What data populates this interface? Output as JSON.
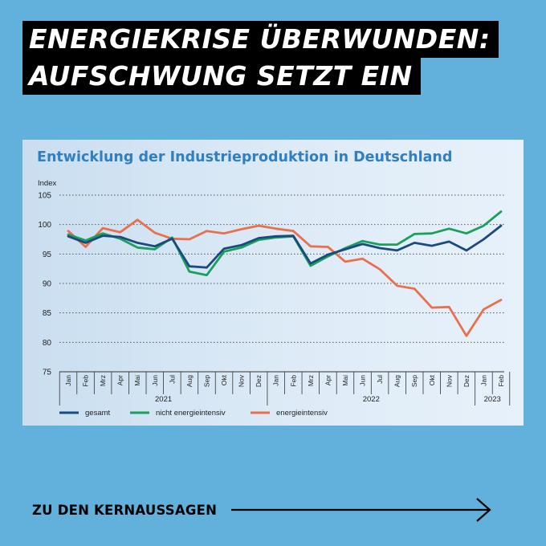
{
  "headline": {
    "line1": "ENERGIEKRISE ÜBERWUNDEN:",
    "line2": "AUFSCHWUNG SETZT EIN"
  },
  "cta": {
    "label": "ZU DEN KERNAUSSAGEN"
  },
  "icons": {
    "cta_arrow": "long-arrow-right-icon"
  },
  "colors": {
    "background": "#62b0dc",
    "title": "#2f7fc1",
    "gesamt": "#1a4a80",
    "nicht_energieintensiv": "#1aa05a",
    "energieintensiv": "#e8704e"
  },
  "chart_data": {
    "type": "line",
    "title": "Entwicklung der Industrieproduktion in Deutschland",
    "ylabel": "Index",
    "ylim": [
      75,
      105
    ],
    "yticks": [
      75,
      80,
      85,
      90,
      95,
      100,
      105
    ],
    "grid": true,
    "legend_position": "bottom",
    "categories": [
      "Jan",
      "Feb",
      "Mrz",
      "Apr",
      "Mai",
      "Jun",
      "Jul",
      "Aug",
      "Sep",
      "Okt",
      "Nov",
      "Dez",
      "Jan",
      "Feb",
      "Mrz",
      "Apr",
      "Mai",
      "Jun",
      "Jul",
      "Aug",
      "Sep",
      "Okt",
      "Nov",
      "Dez",
      "Jan",
      "Feb"
    ],
    "year_groups": [
      {
        "label": "2021",
        "from": 0,
        "to": 11
      },
      {
        "label": "2022",
        "from": 12,
        "to": 23
      },
      {
        "label": "2023",
        "from": 24,
        "to": 25
      }
    ],
    "series": [
      {
        "name": "gesamt",
        "color": "#1a4a80",
        "values": [
          98.0,
          96.9,
          98.1,
          97.9,
          96.9,
          96.3,
          97.6,
          92.9,
          92.7,
          95.9,
          96.5,
          97.7,
          98.0,
          98.1,
          93.4,
          94.9,
          95.8,
          96.7,
          96.0,
          95.6,
          96.9,
          96.4,
          97.1,
          95.6,
          97.5,
          99.8
        ]
      },
      {
        "name": "nicht energieintensiv",
        "color": "#1aa05a",
        "values": [
          98.3,
          97.3,
          98.5,
          97.6,
          96.1,
          95.8,
          97.8,
          92.0,
          91.4,
          95.4,
          96.1,
          97.4,
          97.8,
          98.0,
          93.0,
          94.6,
          96.0,
          97.2,
          96.6,
          96.6,
          98.4,
          98.5,
          99.3,
          98.5,
          99.8,
          102.2
        ]
      },
      {
        "name": "energieintensiv",
        "color": "#e8704e",
        "values": [
          98.9,
          96.2,
          99.4,
          98.7,
          100.8,
          98.6,
          97.6,
          97.5,
          98.9,
          98.5,
          99.2,
          99.8,
          99.3,
          98.9,
          96.3,
          96.2,
          93.7,
          94.2,
          92.4,
          89.6,
          89.1,
          85.9,
          86.0,
          81.1,
          85.6,
          87.2
        ]
      }
    ]
  }
}
